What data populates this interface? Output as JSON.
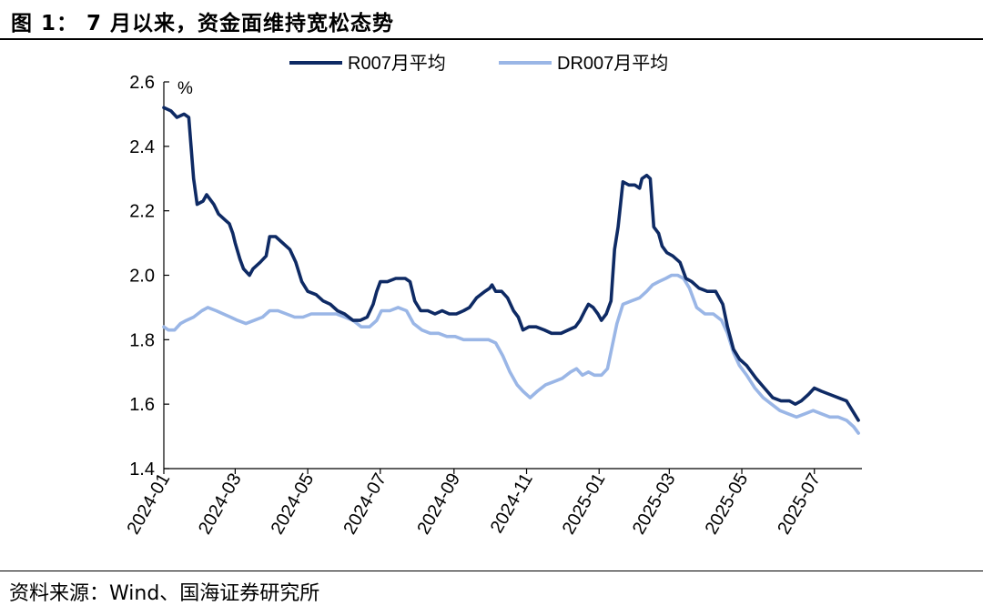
{
  "figure": {
    "title": "图 1： 7 月以来，资金面维持宽松态势",
    "source": "资料来源：Wind、国海证券研究所"
  },
  "chart_data": {
    "type": "line",
    "title": "",
    "xlabel": "",
    "ylabel": "%",
    "ylim": [
      1.4,
      2.6
    ],
    "yticks": [
      "1.4",
      "1.6",
      "1.8",
      "2.0",
      "2.2",
      "2.4",
      "2.6"
    ],
    "xlim": [
      "2024-01-01",
      "2025-08-10"
    ],
    "xticks": [
      "2024-01",
      "2024-03",
      "2024-05",
      "2024-07",
      "2024-09",
      "2024-11",
      "2025-01",
      "2025-03",
      "2025-05",
      "2025-07"
    ],
    "grid": false,
    "legend_position": "top-center",
    "series": [
      {
        "name": "R007月平均",
        "color": "#0e2a64",
        "points": [
          [
            "2024-01-01",
            2.52
          ],
          [
            "2024-01-07",
            2.51
          ],
          [
            "2024-01-12",
            2.49
          ],
          [
            "2024-01-18",
            2.5
          ],
          [
            "2024-01-22",
            2.49
          ],
          [
            "2024-01-26",
            2.3
          ],
          [
            "2024-01-29",
            2.22
          ],
          [
            "2024-02-03",
            2.23
          ],
          [
            "2024-02-06",
            2.25
          ],
          [
            "2024-02-12",
            2.22
          ],
          [
            "2024-02-16",
            2.19
          ],
          [
            "2024-02-22",
            2.17
          ],
          [
            "2024-02-25",
            2.16
          ],
          [
            "2024-02-28",
            2.13
          ],
          [
            "2024-03-01",
            2.1
          ],
          [
            "2024-03-05",
            2.05
          ],
          [
            "2024-03-08",
            2.02
          ],
          [
            "2024-03-13",
            2.0
          ],
          [
            "2024-03-16",
            2.02
          ],
          [
            "2024-03-22",
            2.04
          ],
          [
            "2024-03-27",
            2.06
          ],
          [
            "2024-03-30",
            2.12
          ],
          [
            "2024-04-04",
            2.12
          ],
          [
            "2024-04-10",
            2.1
          ],
          [
            "2024-04-16",
            2.08
          ],
          [
            "2024-04-21",
            2.04
          ],
          [
            "2024-04-26",
            1.98
          ],
          [
            "2024-05-01",
            1.95
          ],
          [
            "2024-05-08",
            1.94
          ],
          [
            "2024-05-14",
            1.92
          ],
          [
            "2024-05-20",
            1.91
          ],
          [
            "2024-05-26",
            1.89
          ],
          [
            "2024-06-01",
            1.88
          ],
          [
            "2024-06-08",
            1.86
          ],
          [
            "2024-06-14",
            1.86
          ],
          [
            "2024-06-20",
            1.87
          ],
          [
            "2024-06-25",
            1.91
          ],
          [
            "2024-06-28",
            1.95
          ],
          [
            "2024-07-01",
            1.98
          ],
          [
            "2024-07-07",
            1.98
          ],
          [
            "2024-07-14",
            1.99
          ],
          [
            "2024-07-22",
            1.99
          ],
          [
            "2024-07-26",
            1.98
          ],
          [
            "2024-07-30",
            1.92
          ],
          [
            "2024-08-04",
            1.89
          ],
          [
            "2024-08-10",
            1.89
          ],
          [
            "2024-08-16",
            1.88
          ],
          [
            "2024-08-22",
            1.89
          ],
          [
            "2024-08-28",
            1.88
          ],
          [
            "2024-09-03",
            1.88
          ],
          [
            "2024-09-09",
            1.89
          ],
          [
            "2024-09-14",
            1.9
          ],
          [
            "2024-09-20",
            1.93
          ],
          [
            "2024-09-27",
            1.95
          ],
          [
            "2024-10-01",
            1.96
          ],
          [
            "2024-10-03",
            1.97
          ],
          [
            "2024-10-06",
            1.95
          ],
          [
            "2024-10-11",
            1.95
          ],
          [
            "2024-10-16",
            1.93
          ],
          [
            "2024-10-21",
            1.89
          ],
          [
            "2024-10-25",
            1.87
          ],
          [
            "2024-10-29",
            1.83
          ],
          [
            "2024-11-03",
            1.84
          ],
          [
            "2024-11-09",
            1.84
          ],
          [
            "2024-11-16",
            1.83
          ],
          [
            "2024-11-22",
            1.82
          ],
          [
            "2024-11-30",
            1.82
          ],
          [
            "2024-12-06",
            1.83
          ],
          [
            "2024-12-12",
            1.84
          ],
          [
            "2024-12-16",
            1.86
          ],
          [
            "2024-12-20",
            1.89
          ],
          [
            "2024-12-23",
            1.91
          ],
          [
            "2024-12-27",
            1.9
          ],
          [
            "2024-12-31",
            1.88
          ],
          [
            "2025-01-03",
            1.86
          ],
          [
            "2025-01-07",
            1.88
          ],
          [
            "2025-01-11",
            1.92
          ],
          [
            "2025-01-14",
            2.08
          ],
          [
            "2025-01-17",
            2.15
          ],
          [
            "2025-01-21",
            2.29
          ],
          [
            "2025-01-26",
            2.28
          ],
          [
            "2025-01-31",
            2.28
          ],
          [
            "2025-02-04",
            2.27
          ],
          [
            "2025-02-06",
            2.3
          ],
          [
            "2025-02-10",
            2.31
          ],
          [
            "2025-02-13",
            2.3
          ],
          [
            "2025-02-16",
            2.15
          ],
          [
            "2025-02-20",
            2.13
          ],
          [
            "2025-02-23",
            2.09
          ],
          [
            "2025-02-27",
            2.07
          ],
          [
            "2025-03-04",
            2.06
          ],
          [
            "2025-03-10",
            2.04
          ],
          [
            "2025-03-15",
            1.99
          ],
          [
            "2025-03-20",
            1.98
          ],
          [
            "2025-03-26",
            1.96
          ],
          [
            "2025-04-02",
            1.95
          ],
          [
            "2025-04-09",
            1.95
          ],
          [
            "2025-04-15",
            1.91
          ],
          [
            "2025-04-19",
            1.84
          ],
          [
            "2025-04-24",
            1.77
          ],
          [
            "2025-04-29",
            1.74
          ],
          [
            "2025-05-05",
            1.72
          ],
          [
            "2025-05-13",
            1.68
          ],
          [
            "2025-05-20",
            1.65
          ],
          [
            "2025-05-27",
            1.62
          ],
          [
            "2025-06-03",
            1.61
          ],
          [
            "2025-06-10",
            1.61
          ],
          [
            "2025-06-15",
            1.6
          ],
          [
            "2025-06-20",
            1.61
          ],
          [
            "2025-06-26",
            1.63
          ],
          [
            "2025-07-01",
            1.65
          ],
          [
            "2025-07-07",
            1.64
          ],
          [
            "2025-07-14",
            1.63
          ],
          [
            "2025-07-21",
            1.62
          ],
          [
            "2025-07-28",
            1.61
          ],
          [
            "2025-08-02",
            1.58
          ],
          [
            "2025-08-07",
            1.55
          ]
        ]
      },
      {
        "name": "DR007月平均",
        "color": "#9ab6e6",
        "points": [
          [
            "2024-01-01",
            1.84
          ],
          [
            "2024-01-05",
            1.83
          ],
          [
            "2024-01-10",
            1.83
          ],
          [
            "2024-01-15",
            1.85
          ],
          [
            "2024-01-20",
            1.86
          ],
          [
            "2024-01-26",
            1.87
          ],
          [
            "2024-02-02",
            1.89
          ],
          [
            "2024-02-07",
            1.9
          ],
          [
            "2024-02-14",
            1.89
          ],
          [
            "2024-02-20",
            1.88
          ],
          [
            "2024-02-26",
            1.87
          ],
          [
            "2024-03-03",
            1.86
          ],
          [
            "2024-03-10",
            1.85
          ],
          [
            "2024-03-17",
            1.86
          ],
          [
            "2024-03-24",
            1.87
          ],
          [
            "2024-03-30",
            1.89
          ],
          [
            "2024-04-06",
            1.89
          ],
          [
            "2024-04-13",
            1.88
          ],
          [
            "2024-04-20",
            1.87
          ],
          [
            "2024-04-27",
            1.87
          ],
          [
            "2024-05-04",
            1.88
          ],
          [
            "2024-05-11",
            1.88
          ],
          [
            "2024-05-18",
            1.88
          ],
          [
            "2024-05-25",
            1.88
          ],
          [
            "2024-06-01",
            1.87
          ],
          [
            "2024-06-08",
            1.86
          ],
          [
            "2024-06-15",
            1.84
          ],
          [
            "2024-06-22",
            1.84
          ],
          [
            "2024-06-28",
            1.86
          ],
          [
            "2024-07-02",
            1.89
          ],
          [
            "2024-07-09",
            1.89
          ],
          [
            "2024-07-16",
            1.9
          ],
          [
            "2024-07-23",
            1.89
          ],
          [
            "2024-07-29",
            1.85
          ],
          [
            "2024-08-05",
            1.83
          ],
          [
            "2024-08-12",
            1.82
          ],
          [
            "2024-08-19",
            1.82
          ],
          [
            "2024-08-26",
            1.81
          ],
          [
            "2024-09-02",
            1.81
          ],
          [
            "2024-09-09",
            1.8
          ],
          [
            "2024-09-16",
            1.8
          ],
          [
            "2024-09-23",
            1.8
          ],
          [
            "2024-09-30",
            1.8
          ],
          [
            "2024-10-06",
            1.79
          ],
          [
            "2024-10-12",
            1.75
          ],
          [
            "2024-10-18",
            1.7
          ],
          [
            "2024-10-24",
            1.66
          ],
          [
            "2024-10-29",
            1.64
          ],
          [
            "2024-11-04",
            1.62
          ],
          [
            "2024-11-10",
            1.64
          ],
          [
            "2024-11-17",
            1.66
          ],
          [
            "2024-11-24",
            1.67
          ],
          [
            "2024-12-01",
            1.68
          ],
          [
            "2024-12-08",
            1.7
          ],
          [
            "2024-12-13",
            1.71
          ],
          [
            "2024-12-18",
            1.69
          ],
          [
            "2024-12-23",
            1.7
          ],
          [
            "2024-12-28",
            1.69
          ],
          [
            "2025-01-03",
            1.69
          ],
          [
            "2025-01-08",
            1.71
          ],
          [
            "2025-01-12",
            1.78
          ],
          [
            "2025-01-16",
            1.85
          ],
          [
            "2025-01-21",
            1.91
          ],
          [
            "2025-01-28",
            1.92
          ],
          [
            "2025-02-04",
            1.93
          ],
          [
            "2025-02-10",
            1.95
          ],
          [
            "2025-02-15",
            1.97
          ],
          [
            "2025-02-20",
            1.98
          ],
          [
            "2025-02-26",
            1.99
          ],
          [
            "2025-03-03",
            2.0
          ],
          [
            "2025-03-08",
            2.0
          ],
          [
            "2025-03-13",
            1.99
          ],
          [
            "2025-03-18",
            1.96
          ],
          [
            "2025-03-24",
            1.9
          ],
          [
            "2025-03-31",
            1.88
          ],
          [
            "2025-04-07",
            1.88
          ],
          [
            "2025-04-14",
            1.86
          ],
          [
            "2025-04-19",
            1.82
          ],
          [
            "2025-04-24",
            1.76
          ],
          [
            "2025-04-29",
            1.72
          ],
          [
            "2025-05-05",
            1.69
          ],
          [
            "2025-05-12",
            1.65
          ],
          [
            "2025-05-19",
            1.62
          ],
          [
            "2025-05-26",
            1.6
          ],
          [
            "2025-06-02",
            1.58
          ],
          [
            "2025-06-09",
            1.57
          ],
          [
            "2025-06-16",
            1.56
          ],
          [
            "2025-06-23",
            1.57
          ],
          [
            "2025-06-30",
            1.58
          ],
          [
            "2025-07-07",
            1.57
          ],
          [
            "2025-07-14",
            1.56
          ],
          [
            "2025-07-21",
            1.56
          ],
          [
            "2025-07-28",
            1.55
          ],
          [
            "2025-08-03",
            1.53
          ],
          [
            "2025-08-07",
            1.51
          ]
        ]
      }
    ]
  }
}
